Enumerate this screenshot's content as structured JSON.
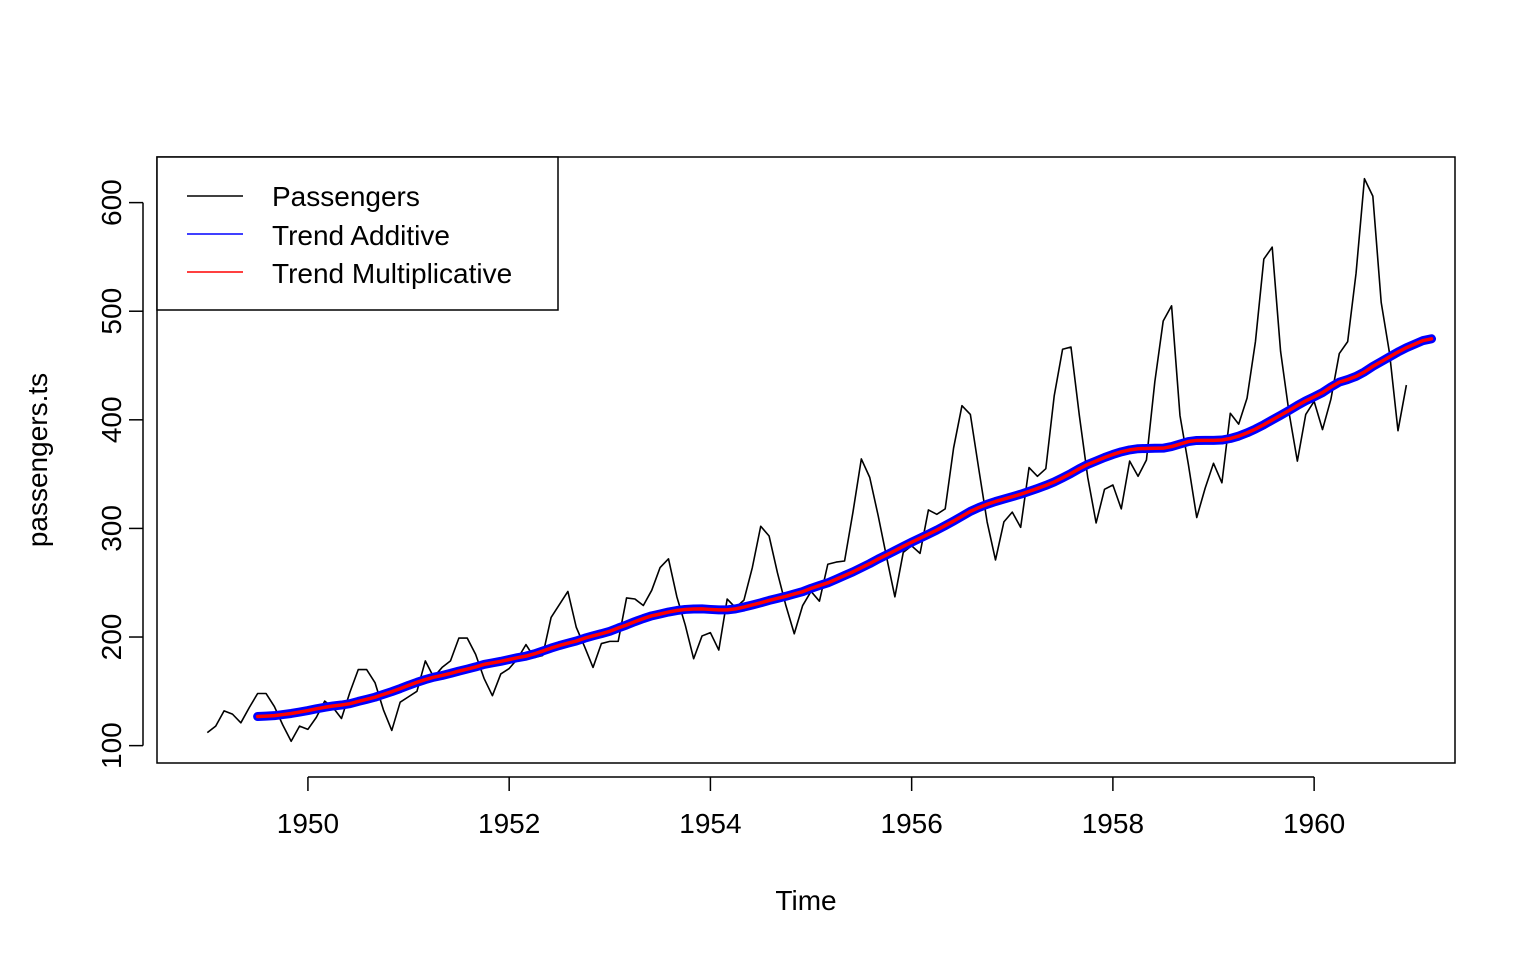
{
  "chart_data": {
    "type": "line",
    "title": "",
    "xlabel": "Time",
    "ylabel": "passengers.ts",
    "xlim": [
      1948.5,
      1961.4
    ],
    "ylim": [
      84,
      642
    ],
    "x_ticks": [
      1950,
      1952,
      1954,
      1956,
      1958,
      1960
    ],
    "x_tick_labels": [
      "1950",
      "1952",
      "1954",
      "1956",
      "1958",
      "1960"
    ],
    "y_ticks": [
      100,
      200,
      300,
      400,
      500,
      600
    ],
    "y_tick_labels": [
      "100",
      "200",
      "300",
      "400",
      "500",
      "600"
    ],
    "grid": false,
    "legend": {
      "position": "top-left",
      "entries": [
        {
          "label": "Passengers",
          "color": "#000000"
        },
        {
          "label": "Trend Additive",
          "color": "#0000ff"
        },
        {
          "label": "Trend Multiplicative",
          "color": "#ff0000"
        }
      ]
    },
    "passengers": {
      "name": "Passengers",
      "color": "#000000",
      "start": [
        1949,
        1
      ],
      "frequency": 12,
      "values": [
        112,
        118,
        132,
        129,
        121,
        135,
        148,
        148,
        136,
        119,
        104,
        118,
        115,
        126,
        141,
        135,
        125,
        149,
        170,
        170,
        158,
        133,
        114,
        140,
        145,
        150,
        178,
        163,
        172,
        178,
        199,
        199,
        184,
        162,
        146,
        166,
        171,
        180,
        193,
        181,
        183,
        218,
        230,
        242,
        209,
        191,
        172,
        194,
        196,
        196,
        236,
        235,
        229,
        243,
        264,
        272,
        237,
        211,
        180,
        201,
        204,
        188,
        235,
        227,
        234,
        264,
        302,
        293,
        259,
        229,
        203,
        229,
        242,
        233,
        267,
        269,
        270,
        315,
        364,
        347,
        312,
        274,
        237,
        278,
        284,
        277,
        317,
        313,
        318,
        374,
        413,
        405,
        355,
        306,
        271,
        306,
        315,
        301,
        356,
        348,
        355,
        422,
        465,
        467,
        404,
        347,
        305,
        336,
        340,
        318,
        362,
        348,
        363,
        435,
        491,
        505,
        404,
        359,
        310,
        337,
        360,
        342,
        406,
        396,
        420,
        472,
        548,
        559,
        463,
        407,
        362,
        405,
        417,
        391,
        419,
        461,
        472,
        535,
        622,
        606,
        508,
        461,
        390,
        432
      ]
    },
    "trend": {
      "names": [
        "Trend Additive",
        "Trend Multiplicative"
      ],
      "colors": [
        "#0000ff",
        "#ff0000"
      ],
      "start": [
        1949,
        7
      ],
      "frequency": 12,
      "values": [
        126.8,
        127.2,
        127.6,
        128.6,
        129.6,
        130.9,
        132.3,
        133.9,
        135.3,
        136.5,
        137.4,
        138.6,
        140.7,
        142.6,
        144.6,
        147.2,
        149.7,
        152.5,
        155.5,
        158.3,
        160.8,
        163.0,
        164.6,
        166.5,
        168.6,
        170.5,
        172.5,
        174.8,
        176.2,
        177.6,
        179.3,
        181.0,
        182.4,
        184.5,
        187.1,
        189.8,
        192.2,
        194.3,
        196.3,
        198.9,
        201.1,
        203.1,
        205.3,
        208.3,
        211.1,
        214.2,
        217.0,
        219.5,
        221.2,
        223.0,
        224.4,
        225.4,
        225.8,
        225.9,
        225.4,
        225.0,
        225.0,
        225.9,
        227.6,
        229.5,
        231.5,
        233.7,
        235.6,
        237.5,
        239.7,
        241.8,
        244.8,
        247.4,
        249.9,
        253.2,
        256.6,
        260.0,
        263.8,
        267.6,
        271.8,
        275.6,
        279.5,
        283.5,
        287.3,
        291.0,
        294.7,
        298.5,
        302.6,
        306.8,
        311.2,
        315.7,
        319.2,
        322.2,
        324.8,
        327.0,
        329.2,
        331.5,
        334.1,
        336.8,
        339.6,
        342.8,
        346.6,
        350.6,
        355.0,
        358.9,
        362.1,
        365.3,
        368.1,
        370.5,
        372.3,
        373.4,
        373.6,
        373.8,
        373.9,
        375.4,
        377.7,
        380.0,
        381.0,
        381.1,
        381.1,
        381.4,
        382.8,
        385.0,
        388.0,
        391.5,
        395.5,
        399.9,
        404.2,
        408.6,
        413.2,
        417.5,
        421.2,
        425.1,
        430.2,
        434.7,
        437.1,
        440.0,
        444.1,
        449.2,
        453.6,
        458.0,
        462.4,
        466.4,
        469.7,
        473.0,
        474.6
      ]
    }
  }
}
